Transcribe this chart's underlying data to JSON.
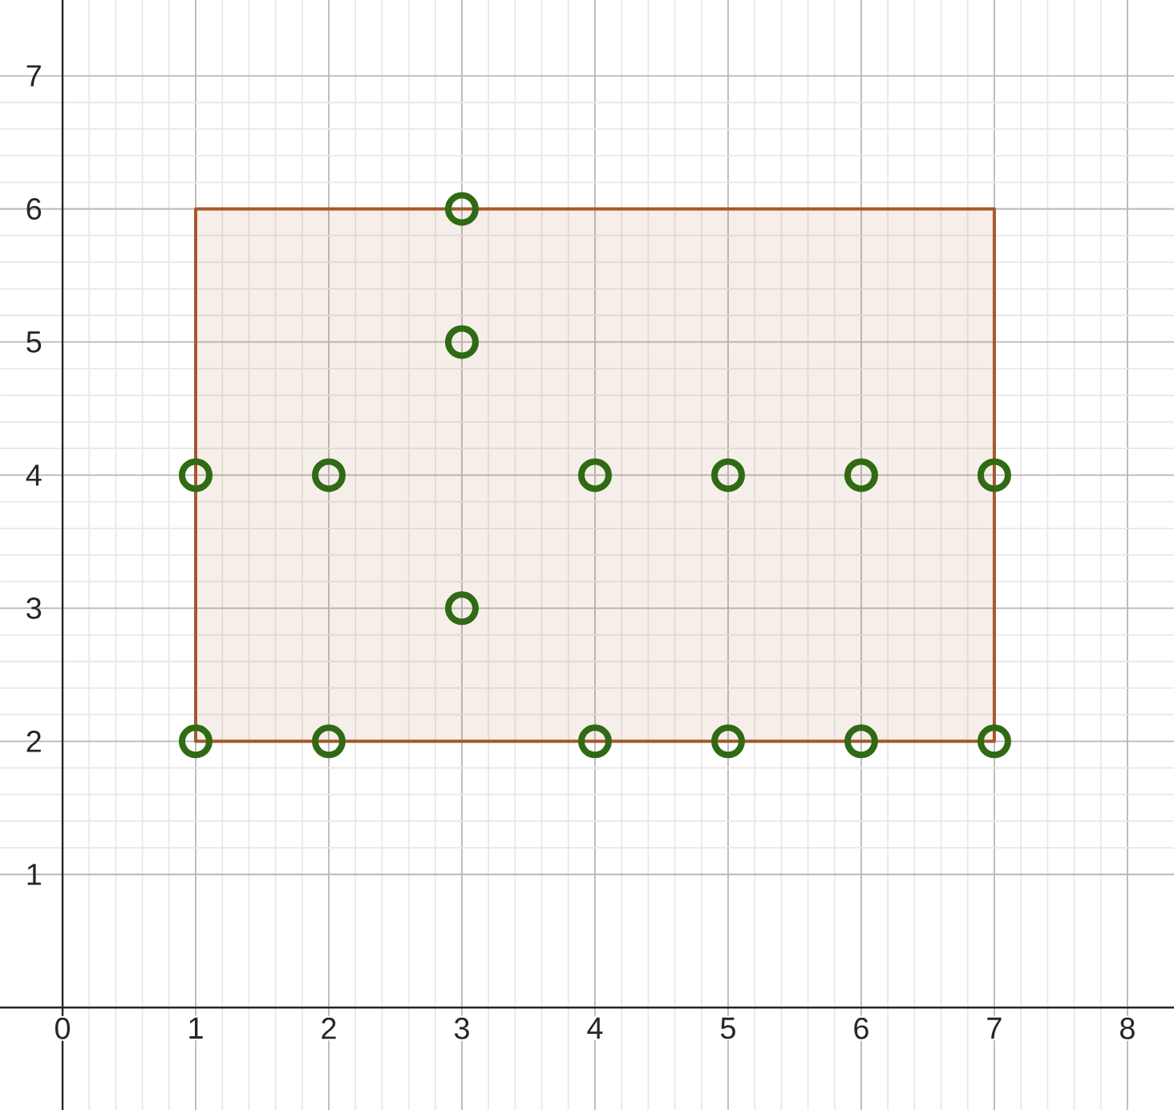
{
  "chart_data": {
    "type": "scatter",
    "xlim": [
      -0.47,
      8.35
    ],
    "ylim": [
      -0.77,
      7.57
    ],
    "xticks": [
      0,
      1,
      2,
      3,
      4,
      5,
      6,
      7,
      8
    ],
    "yticks": [
      1,
      2,
      3,
      4,
      5,
      6,
      7
    ],
    "grid": true,
    "series": [
      {
        "type": "area",
        "color": "#a5582c",
        "x": [
          1,
          1,
          7,
          7,
          1
        ],
        "values": [
          2,
          6,
          6,
          2,
          2
        ]
      },
      {
        "marker": "circle",
        "color": "#2f6a14",
        "x": [
          1,
          1,
          2,
          2,
          3,
          3,
          3,
          4,
          4,
          5,
          5,
          6,
          6,
          7,
          7
        ],
        "values": [
          2,
          4,
          2,
          4,
          3,
          5,
          6,
          2,
          4,
          2,
          4,
          2,
          4,
          2,
          4
        ]
      }
    ]
  }
}
